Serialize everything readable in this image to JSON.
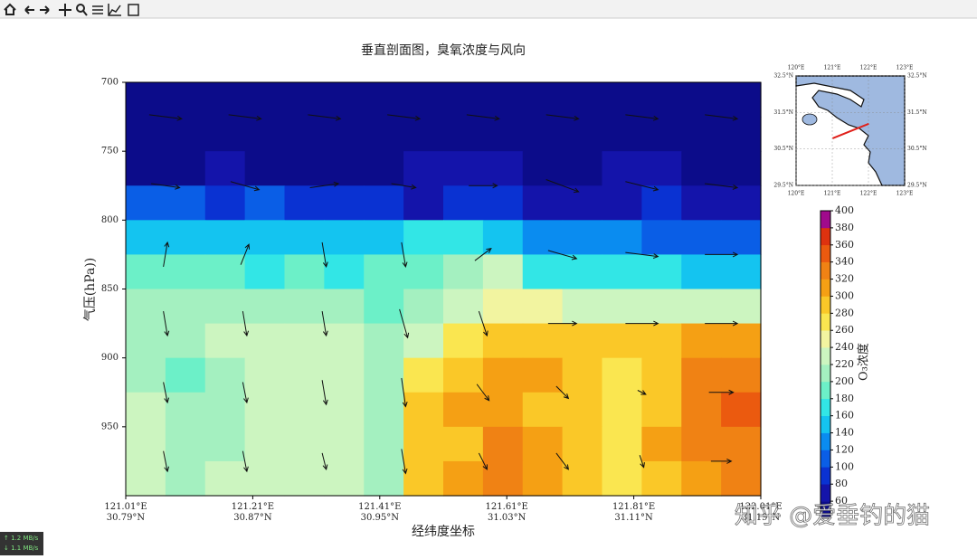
{
  "chart_data": {
    "type": "contour",
    "title": "垂直剖面图，臭氧浓度与风向",
    "xlabel": "经纬度坐标",
    "ylabel": "气压(hPa))",
    "xlim": [
      121.01,
      122.01
    ],
    "xticks": [
      {
        "value": 121.01,
        "label": "121.01°E\n30.79°N"
      },
      {
        "value": 121.21,
        "label": "121.21°E\n30.87°N"
      },
      {
        "value": 121.41,
        "label": "121.41°E\n30.95°N"
      },
      {
        "value": 121.61,
        "label": "121.61°E\n31.03°N"
      },
      {
        "value": 121.81,
        "label": "121.81°E\n31.11°N"
      },
      {
        "value": 122.01,
        "label": "122.01°E\n31.19°N"
      }
    ],
    "ylim": [
      1000,
      700
    ],
    "yticks": [
      700,
      750,
      800,
      850,
      900,
      950
    ],
    "z": [
      [
        50,
        50,
        50,
        50,
        50,
        50,
        50,
        50,
        50,
        50,
        50,
        50,
        50,
        50,
        50,
        50
      ],
      [
        50,
        50,
        52,
        50,
        50,
        50,
        50,
        50,
        50,
        50,
        50,
        50,
        50,
        50,
        50,
        50
      ],
      [
        58,
        58,
        62,
        56,
        56,
        56,
        56,
        60,
        64,
        62,
        58,
        56,
        62,
        70,
        58,
        56
      ],
      [
        100,
        105,
        95,
        100,
        90,
        85,
        80,
        75,
        80,
        80,
        70,
        72,
        78,
        85,
        78,
        72
      ],
      [
        150,
        145,
        150,
        150,
        145,
        140,
        150,
        160,
        165,
        140,
        125,
        120,
        120,
        118,
        112,
        108
      ],
      [
        185,
        180,
        180,
        175,
        180,
        175,
        180,
        185,
        210,
        220,
        175,
        165,
        160,
        160,
        155,
        150
      ],
      [
        200,
        200,
        205,
        200,
        205,
        200,
        195,
        205,
        230,
        250,
        240,
        230,
        225,
        225,
        222,
        220
      ],
      [
        210,
        205,
        225,
        230,
        230,
        225,
        205,
        230,
        275,
        285,
        290,
        290,
        292,
        295,
        305,
        315
      ],
      [
        200,
        195,
        215,
        225,
        232,
        225,
        200,
        270,
        290,
        300,
        300,
        298,
        270,
        290,
        322,
        332
      ],
      [
        230,
        200,
        210,
        225,
        232,
        220,
        205,
        280,
        300,
        312,
        295,
        285,
        265,
        292,
        335,
        350
      ],
      [
        235,
        210,
        215,
        230,
        238,
        225,
        210,
        285,
        296,
        322,
        300,
        290,
        268,
        302,
        328,
        338
      ],
      [
        232,
        215,
        220,
        236,
        236,
        230,
        215,
        290,
        302,
        326,
        305,
        288,
        275,
        296,
        312,
        322
      ]
    ],
    "levels": [
      40,
      60,
      80,
      100,
      120,
      140,
      160,
      180,
      200,
      220,
      240,
      260,
      280,
      300,
      320,
      340,
      360,
      380,
      400
    ],
    "colors": [
      "#0c0c8a",
      "#1414aa",
      "#0a32d2",
      "#0a5ee6",
      "#0a8cf0",
      "#14c4f0",
      "#32e6e6",
      "#6cf0c8",
      "#a4f0c0",
      "#ccf5c0",
      "#f2f4a0",
      "#fae650",
      "#fac828",
      "#f5a014",
      "#f08214",
      "#eb5a0f",
      "#de320f",
      "#a00a8c"
    ],
    "colorbar": {
      "label": "O₃浓度",
      "ticks": [
        60,
        80,
        100,
        120,
        140,
        160,
        180,
        200,
        220,
        240,
        260,
        280,
        300,
        320,
        340,
        360,
        380,
        400
      ]
    },
    "wind": {
      "u": [
        [
          8,
          8,
          8,
          8,
          8,
          8,
          8,
          8
        ],
        [
          7,
          7,
          7,
          6,
          7,
          8,
          8,
          8
        ],
        [
          1,
          2,
          1,
          1,
          4,
          7,
          8,
          8
        ],
        [
          1,
          1,
          1,
          2,
          2,
          7,
          8,
          8
        ],
        [
          1,
          1,
          1,
          1,
          3,
          3,
          2,
          6
        ],
        [
          1,
          1,
          1,
          1,
          2,
          3,
          1,
          5
        ]
      ],
      "w": [
        [
          -1,
          -1,
          -1,
          -1,
          -1,
          -1,
          -1,
          -1
        ],
        [
          -1,
          -2,
          1,
          -1,
          0,
          -3,
          -2,
          -1
        ],
        [
          6,
          5,
          -6,
          -6,
          3,
          -2,
          -1,
          0
        ],
        [
          -6,
          -6,
          -6,
          -7,
          -6,
          0,
          0,
          0
        ],
        [
          -5,
          -5,
          -6,
          -7,
          -4,
          -3,
          -1,
          0
        ],
        [
          -5,
          -5,
          -4,
          -6,
          -4,
          -4,
          -3,
          0
        ]
      ]
    },
    "inset": {
      "xlim": [
        120,
        123
      ],
      "ylim": [
        29.5,
        32.5
      ],
      "xticks": [
        {
          "value": 120,
          "label": "120°E"
        },
        {
          "value": 121,
          "label": "121°E"
        },
        {
          "value": 122,
          "label": "122°E"
        },
        {
          "value": 123,
          "label": "123°E"
        }
      ],
      "yticks": [
        {
          "value": 29.5,
          "label": "29.5°N"
        },
        {
          "value": 30.5,
          "label": "30.5°N"
        },
        {
          "value": 31.5,
          "label": "31.5°N"
        },
        {
          "value": 32.5,
          "label": "32.5°N"
        }
      ],
      "section": {
        "lon": [
          121.01,
          122.01
        ],
        "lat": [
          30.79,
          31.19
        ]
      }
    }
  },
  "watermark": "知乎 @爱垂钓的猫",
  "network": {
    "up": "↑ 1.2 MB/s",
    "down": "↓ 1.1 MB/s"
  }
}
